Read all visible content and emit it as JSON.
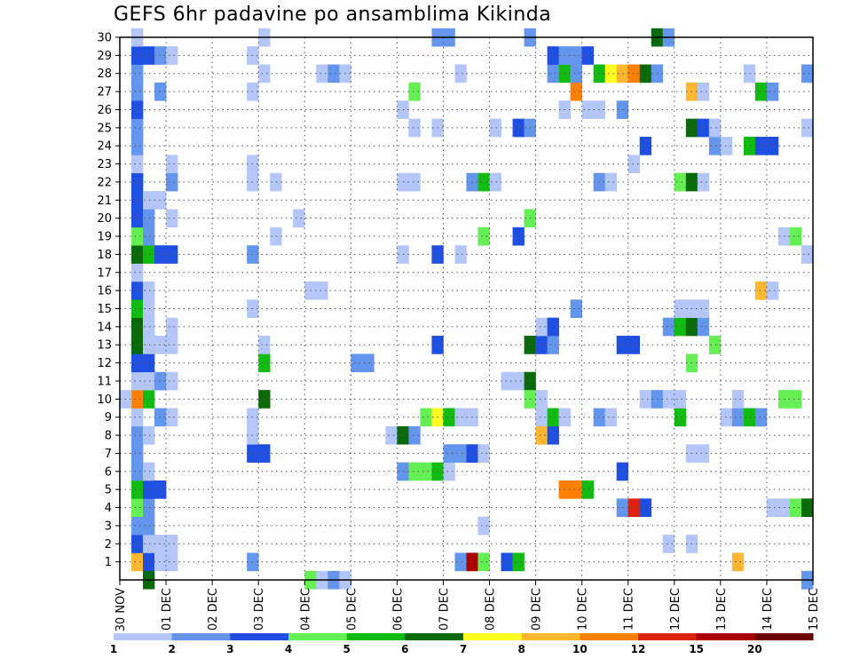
{
  "chart_data": {
    "type": "heatmap",
    "title": "GEFS 6hr padavine po ansamblima Kikinda",
    "y_ticks": [
      1,
      2,
      3,
      4,
      5,
      6,
      7,
      8,
      9,
      10,
      11,
      12,
      13,
      14,
      15,
      16,
      17,
      18,
      19,
      20,
      21,
      22,
      23,
      24,
      25,
      26,
      27,
      28,
      29,
      30
    ],
    "x_ticks": [
      "30 NOV",
      "01 DEC",
      "02 DEC",
      "03 DEC",
      "04 DEC",
      "05 DEC",
      "06 DEC",
      "07 DEC",
      "08 DEC",
      "09 DEC",
      "10 DEC",
      "11 DEC",
      "12 DEC",
      "13 DEC",
      "14 DEC",
      "15 DEC"
    ],
    "x_range": [
      0,
      15
    ],
    "y_range": [
      0,
      30
    ],
    "grid": true,
    "colorbar": {
      "labels": [
        "1",
        "2",
        "3",
        "4",
        "5",
        "6",
        "7",
        "8",
        "10",
        "12",
        "15",
        "20"
      ],
      "colors": [
        "#b3c6f7",
        "#6495ed",
        "#1e4fe0",
        "#66ee55",
        "#11bb11",
        "#0a6a0a",
        "#ffff22",
        "#ffb630",
        "#ff7f00",
        "#dd2211",
        "#aa0000",
        "#6b0000"
      ]
    },
    "cells": [
      {
        "d": 0.25,
        "m": 1,
        "c": 7
      },
      {
        "d": 0.25,
        "m": 2,
        "c": 2
      },
      {
        "d": 0.25,
        "m": 3,
        "c": 1
      },
      {
        "d": 0.25,
        "m": 4,
        "c": 3
      },
      {
        "d": 0.25,
        "m": 5,
        "c": 4
      },
      {
        "d": 0.25,
        "m": 6,
        "c": 1
      },
      {
        "d": 0.25,
        "m": 7,
        "c": 1
      },
      {
        "d": 0.25,
        "m": 8,
        "c": 1
      },
      {
        "d": 0.25,
        "m": 9,
        "c": 0
      },
      {
        "d": 0.25,
        "m": 10,
        "c": 8
      },
      {
        "d": 0.25,
        "m": 11,
        "c": 0
      },
      {
        "d": 0.25,
        "m": 12,
        "c": 2
      },
      {
        "d": 0.25,
        "m": 13,
        "c": 5
      },
      {
        "d": 0.25,
        "m": 14,
        "c": 5
      },
      {
        "d": 0.25,
        "m": 15,
        "c": 4
      },
      {
        "d": 0.25,
        "m": 16,
        "c": 2
      },
      {
        "d": 0.25,
        "m": 17,
        "c": 0
      },
      {
        "d": 0.25,
        "m": 18,
        "c": 5
      },
      {
        "d": 0.25,
        "m": 19,
        "c": 3
      },
      {
        "d": 0.25,
        "m": 20,
        "c": 2
      },
      {
        "d": 0.25,
        "m": 21,
        "c": 2
      },
      {
        "d": 0.25,
        "m": 22,
        "c": 2
      },
      {
        "d": 0.25,
        "m": 23,
        "c": 0
      },
      {
        "d": 0.25,
        "m": 24,
        "c": 1
      },
      {
        "d": 0.25,
        "m": 25,
        "c": 1
      },
      {
        "d": 0.25,
        "m": 26,
        "c": 2
      },
      {
        "d": 0.25,
        "m": 27,
        "c": 1
      },
      {
        "d": 0.25,
        "m": 28,
        "c": 1
      },
      {
        "d": 0.25,
        "m": 29,
        "c": 2
      },
      {
        "d": 0.25,
        "m": 30,
        "c": 0
      },
      {
        "d": 0.5,
        "m": 1,
        "c": 2
      },
      {
        "d": 0.5,
        "m": 2,
        "c": 0
      },
      {
        "d": 0.5,
        "m": 3,
        "c": 1
      },
      {
        "d": 0.5,
        "m": 4,
        "c": 1
      },
      {
        "d": 0.5,
        "m": 5,
        "c": 2
      },
      {
        "d": 0.5,
        "m": 6,
        "c": 0
      },
      {
        "d": 0.5,
        "m": 8,
        "c": 0
      },
      {
        "d": 0.5,
        "m": 10,
        "c": 4
      },
      {
        "d": 0.5,
        "m": 11,
        "c": 0
      },
      {
        "d": 0.5,
        "m": 12,
        "c": 2
      },
      {
        "d": 0.5,
        "m": 13,
        "c": 0
      },
      {
        "d": 0.5,
        "m": 14,
        "c": 0
      },
      {
        "d": 0.5,
        "m": 15,
        "c": 0
      },
      {
        "d": 0.5,
        "m": 16,
        "c": 0
      },
      {
        "d": 0.5,
        "m": 18,
        "c": 4
      },
      {
        "d": 0.5,
        "m": 19,
        "c": 1
      },
      {
        "d": 0.5,
        "m": 20,
        "c": 1
      },
      {
        "d": 0.5,
        "m": 21,
        "c": 0
      },
      {
        "d": 0.5,
        "m": 29,
        "c": 2
      },
      {
        "d": 0.5,
        "m": 0,
        "c": 5
      },
      {
        "d": 0.0,
        "m": 10,
        "c": 0
      },
      {
        "d": 0.75,
        "m": 1,
        "c": 0
      },
      {
        "d": 0.75,
        "m": 2,
        "c": 0
      },
      {
        "d": 0.75,
        "m": 5,
        "c": 2
      },
      {
        "d": 0.75,
        "m": 9,
        "c": 1
      },
      {
        "d": 0.75,
        "m": 11,
        "c": 1
      },
      {
        "d": 0.75,
        "m": 13,
        "c": 0
      },
      {
        "d": 0.75,
        "m": 18,
        "c": 2
      },
      {
        "d": 0.75,
        "m": 21,
        "c": 0
      },
      {
        "d": 0.75,
        "m": 27,
        "c": 1
      },
      {
        "d": 0.75,
        "m": 29,
        "c": 1
      },
      {
        "d": 1.0,
        "m": 1,
        "c": 0
      },
      {
        "d": 1.0,
        "m": 2,
        "c": 0
      },
      {
        "d": 1.0,
        "m": 9,
        "c": 0
      },
      {
        "d": 1.0,
        "m": 11,
        "c": 0
      },
      {
        "d": 1.0,
        "m": 13,
        "c": 0
      },
      {
        "d": 1.0,
        "m": 14,
        "c": 0
      },
      {
        "d": 1.0,
        "m": 18,
        "c": 2
      },
      {
        "d": 1.0,
        "m": 20,
        "c": 0
      },
      {
        "d": 1.0,
        "m": 22,
        "c": 1
      },
      {
        "d": 1.0,
        "m": 23,
        "c": 0
      },
      {
        "d": 1.0,
        "m": 29,
        "c": 0
      },
      {
        "d": 2.75,
        "m": 1,
        "c": 1
      },
      {
        "d": 2.75,
        "m": 7,
        "c": 2
      },
      {
        "d": 2.75,
        "m": 18,
        "c": 1
      },
      {
        "d": 2.75,
        "m": 9,
        "c": 0
      },
      {
        "d": 2.75,
        "m": 8,
        "c": 0
      },
      {
        "d": 2.75,
        "m": 15,
        "c": 0
      },
      {
        "d": 2.75,
        "m": 22,
        "c": 0
      },
      {
        "d": 2.75,
        "m": 23,
        "c": 0
      },
      {
        "d": 2.75,
        "m": 27,
        "c": 0
      },
      {
        "d": 2.75,
        "m": 29,
        "c": 0
      },
      {
        "d": 3.0,
        "m": 7,
        "c": 2
      },
      {
        "d": 3.0,
        "m": 10,
        "c": 5
      },
      {
        "d": 3.0,
        "m": 12,
        "c": 4
      },
      {
        "d": 3.0,
        "m": 13,
        "c": 0
      },
      {
        "d": 3.0,
        "m": 28,
        "c": 0
      },
      {
        "d": 3.0,
        "m": 30,
        "c": 0
      },
      {
        "d": 3.25,
        "m": 19,
        "c": 0
      },
      {
        "d": 3.25,
        "m": 22,
        "c": 0
      },
      {
        "d": 3.75,
        "m": 20,
        "c": 0
      },
      {
        "d": 4.0,
        "m": 0,
        "c": 3
      },
      {
        "d": 4.0,
        "m": 16,
        "c": 0
      },
      {
        "d": 4.25,
        "m": 0,
        "c": 0
      },
      {
        "d": 4.25,
        "m": 16,
        "c": 0
      },
      {
        "d": 4.25,
        "m": 28,
        "c": 0
      },
      {
        "d": 4.5,
        "m": 0,
        "c": 1
      },
      {
        "d": 4.5,
        "m": 28,
        "c": 1
      },
      {
        "d": 4.75,
        "m": 0,
        "c": 0
      },
      {
        "d": 4.75,
        "m": 28,
        "c": 0
      },
      {
        "d": 5.0,
        "m": 12,
        "c": 1
      },
      {
        "d": 5.25,
        "m": 12,
        "c": 1
      },
      {
        "d": 5.75,
        "m": 8,
        "c": 0
      },
      {
        "d": 6.0,
        "m": 8,
        "c": 5
      },
      {
        "d": 6.0,
        "m": 6,
        "c": 1
      },
      {
        "d": 6.0,
        "m": 18,
        "c": 0
      },
      {
        "d": 6.0,
        "m": 22,
        "c": 0
      },
      {
        "d": 6.0,
        "m": 26,
        "c": 0
      },
      {
        "d": 6.25,
        "m": 6,
        "c": 3
      },
      {
        "d": 6.25,
        "m": 8,
        "c": 1
      },
      {
        "d": 6.25,
        "m": 22,
        "c": 0
      },
      {
        "d": 6.25,
        "m": 25,
        "c": 0
      },
      {
        "d": 6.25,
        "m": 27,
        "c": 3
      },
      {
        "d": 6.5,
        "m": 6,
        "c": 3
      },
      {
        "d": 6.5,
        "m": 9,
        "c": 3
      },
      {
        "d": 6.75,
        "m": 6,
        "c": 4
      },
      {
        "d": 6.75,
        "m": 9,
        "c": 6
      },
      {
        "d": 6.75,
        "m": 13,
        "c": 2
      },
      {
        "d": 6.75,
        "m": 18,
        "c": 2
      },
      {
        "d": 6.75,
        "m": 25,
        "c": 0
      },
      {
        "d": 6.75,
        "m": 30,
        "c": 1
      },
      {
        "d": 7.0,
        "m": 6,
        "c": 0
      },
      {
        "d": 7.0,
        "m": 7,
        "c": 1
      },
      {
        "d": 7.0,
        "m": 9,
        "c": 4
      },
      {
        "d": 7.0,
        "m": 30,
        "c": 1
      },
      {
        "d": 7.25,
        "m": 1,
        "c": 1
      },
      {
        "d": 7.25,
        "m": 7,
        "c": 1
      },
      {
        "d": 7.25,
        "m": 9,
        "c": 0
      },
      {
        "d": 7.25,
        "m": 18,
        "c": 0
      },
      {
        "d": 7.25,
        "m": 28,
        "c": 0
      },
      {
        "d": 7.5,
        "m": 1,
        "c": 10
      },
      {
        "d": 7.5,
        "m": 7,
        "c": 2
      },
      {
        "d": 7.5,
        "m": 9,
        "c": 0
      },
      {
        "d": 7.5,
        "m": 22,
        "c": 1
      },
      {
        "d": 7.75,
        "m": 1,
        "c": 3
      },
      {
        "d": 7.75,
        "m": 3,
        "c": 0
      },
      {
        "d": 7.75,
        "m": 7,
        "c": 0
      },
      {
        "d": 7.75,
        "m": 19,
        "c": 3
      },
      {
        "d": 7.75,
        "m": 22,
        "c": 4
      },
      {
        "d": 8.0,
        "m": 22,
        "c": 0
      },
      {
        "d": 8.0,
        "m": 25,
        "c": 0
      },
      {
        "d": 8.25,
        "m": 1,
        "c": 2
      },
      {
        "d": 8.25,
        "m": 11,
        "c": 0
      },
      {
        "d": 8.5,
        "m": 1,
        "c": 4
      },
      {
        "d": 8.5,
        "m": 11,
        "c": 0
      },
      {
        "d": 8.5,
        "m": 19,
        "c": 2
      },
      {
        "d": 8.5,
        "m": 25,
        "c": 2
      },
      {
        "d": 8.75,
        "m": 11,
        "c": 5
      },
      {
        "d": 8.75,
        "m": 13,
        "c": 5
      },
      {
        "d": 8.75,
        "m": 10,
        "c": 3
      },
      {
        "d": 8.75,
        "m": 20,
        "c": 3
      },
      {
        "d": 8.75,
        "m": 30,
        "c": 1
      },
      {
        "d": 8.75,
        "m": 25,
        "c": 1
      },
      {
        "d": 9.0,
        "m": 8,
        "c": 7
      },
      {
        "d": 9.0,
        "m": 9,
        "c": 0
      },
      {
        "d": 9.0,
        "m": 10,
        "c": 0
      },
      {
        "d": 9.0,
        "m": 13,
        "c": 2
      },
      {
        "d": 9.0,
        "m": 14,
        "c": 0
      },
      {
        "d": 9.25,
        "m": 8,
        "c": 2
      },
      {
        "d": 9.25,
        "m": 9,
        "c": 4
      },
      {
        "d": 9.25,
        "m": 13,
        "c": 1
      },
      {
        "d": 9.25,
        "m": 14,
        "c": 2
      },
      {
        "d": 9.25,
        "m": 28,
        "c": 1
      },
      {
        "d": 9.25,
        "m": 29,
        "c": 2
      },
      {
        "d": 9.5,
        "m": 9,
        "c": 0
      },
      {
        "d": 9.5,
        "m": 5,
        "c": 8
      },
      {
        "d": 9.5,
        "m": 28,
        "c": 4
      },
      {
        "d": 9.5,
        "m": 29,
        "c": 1
      },
      {
        "d": 9.5,
        "m": 26,
        "c": 0
      },
      {
        "d": 9.75,
        "m": 5,
        "c": 8
      },
      {
        "d": 9.75,
        "m": 27,
        "c": 8
      },
      {
        "d": 9.75,
        "m": 28,
        "c": 1
      },
      {
        "d": 9.75,
        "m": 29,
        "c": 1
      },
      {
        "d": 9.75,
        "m": 15,
        "c": 1
      },
      {
        "d": 10.0,
        "m": 5,
        "c": 4
      },
      {
        "d": 10.0,
        "m": 26,
        "c": 0
      },
      {
        "d": 10.0,
        "m": 29,
        "c": 2
      },
      {
        "d": 10.25,
        "m": 9,
        "c": 1
      },
      {
        "d": 10.25,
        "m": 22,
        "c": 1
      },
      {
        "d": 10.25,
        "m": 26,
        "c": 0
      },
      {
        "d": 10.25,
        "m": 28,
        "c": 4
      },
      {
        "d": 10.5,
        "m": 9,
        "c": 0
      },
      {
        "d": 10.5,
        "m": 22,
        "c": 0
      },
      {
        "d": 10.5,
        "m": 28,
        "c": 6
      },
      {
        "d": 10.75,
        "m": 4,
        "c": 1
      },
      {
        "d": 10.75,
        "m": 6,
        "c": 2
      },
      {
        "d": 10.75,
        "m": 13,
        "c": 2
      },
      {
        "d": 10.75,
        "m": 26,
        "c": 1
      },
      {
        "d": 10.75,
        "m": 28,
        "c": 7
      },
      {
        "d": 11.0,
        "m": 4,
        "c": 9
      },
      {
        "d": 11.0,
        "m": 13,
        "c": 2
      },
      {
        "d": 11.0,
        "m": 23,
        "c": 0
      },
      {
        "d": 11.0,
        "m": 28,
        "c": 8
      },
      {
        "d": 11.25,
        "m": 4,
        "c": 2
      },
      {
        "d": 11.25,
        "m": 10,
        "c": 0
      },
      {
        "d": 11.25,
        "m": 24,
        "c": 2
      },
      {
        "d": 11.25,
        "m": 28,
        "c": 5
      },
      {
        "d": 11.5,
        "m": 10,
        "c": 1
      },
      {
        "d": 11.5,
        "m": 28,
        "c": 1
      },
      {
        "d": 11.5,
        "m": 30,
        "c": 5
      },
      {
        "d": 11.75,
        "m": 2,
        "c": 0
      },
      {
        "d": 11.75,
        "m": 10,
        "c": 0
      },
      {
        "d": 11.75,
        "m": 14,
        "c": 1
      },
      {
        "d": 11.75,
        "m": 30,
        "c": 1
      },
      {
        "d": 12.0,
        "m": 9,
        "c": 4
      },
      {
        "d": 12.0,
        "m": 10,
        "c": 0
      },
      {
        "d": 12.0,
        "m": 14,
        "c": 4
      },
      {
        "d": 12.0,
        "m": 15,
        "c": 0
      },
      {
        "d": 12.0,
        "m": 22,
        "c": 3
      },
      {
        "d": 12.25,
        "m": 2,
        "c": 0
      },
      {
        "d": 12.25,
        "m": 7,
        "c": 0
      },
      {
        "d": 12.25,
        "m": 12,
        "c": 3
      },
      {
        "d": 12.25,
        "m": 14,
        "c": 5
      },
      {
        "d": 12.25,
        "m": 15,
        "c": 0
      },
      {
        "d": 12.25,
        "m": 22,
        "c": 5
      },
      {
        "d": 12.25,
        "m": 25,
        "c": 5
      },
      {
        "d": 12.25,
        "m": 27,
        "c": 7
      },
      {
        "d": 12.5,
        "m": 7,
        "c": 0
      },
      {
        "d": 12.5,
        "m": 14,
        "c": 1
      },
      {
        "d": 12.5,
        "m": 15,
        "c": 0
      },
      {
        "d": 12.5,
        "m": 22,
        "c": 0
      },
      {
        "d": 12.5,
        "m": 25,
        "c": 2
      },
      {
        "d": 12.5,
        "m": 27,
        "c": 0
      },
      {
        "d": 12.75,
        "m": 13,
        "c": 3
      },
      {
        "d": 12.75,
        "m": 24,
        "c": 1
      },
      {
        "d": 12.75,
        "m": 25,
        "c": 0
      },
      {
        "d": 13.0,
        "m": 9,
        "c": 0
      },
      {
        "d": 13.0,
        "m": 24,
        "c": 0
      },
      {
        "d": 13.25,
        "m": 1,
        "c": 7
      },
      {
        "d": 13.25,
        "m": 9,
        "c": 1
      },
      {
        "d": 13.25,
        "m": 10,
        "c": 0
      },
      {
        "d": 13.5,
        "m": 9,
        "c": 4
      },
      {
        "d": 13.5,
        "m": 24,
        "c": 4
      },
      {
        "d": 13.5,
        "m": 28,
        "c": 0
      },
      {
        "d": 13.75,
        "m": 9,
        "c": 1
      },
      {
        "d": 13.75,
        "m": 16,
        "c": 7
      },
      {
        "d": 13.75,
        "m": 24,
        "c": 2
      },
      {
        "d": 13.75,
        "m": 27,
        "c": 4
      },
      {
        "d": 14.0,
        "m": 4,
        "c": 0
      },
      {
        "d": 14.0,
        "m": 16,
        "c": 0
      },
      {
        "d": 14.0,
        "m": 24,
        "c": 2
      },
      {
        "d": 14.0,
        "m": 27,
        "c": 1
      },
      {
        "d": 14.25,
        "m": 4,
        "c": 0
      },
      {
        "d": 14.25,
        "m": 10,
        "c": 3
      },
      {
        "d": 14.25,
        "m": 19,
        "c": 0
      },
      {
        "d": 14.5,
        "m": 4,
        "c": 3
      },
      {
        "d": 14.5,
        "m": 10,
        "c": 3
      },
      {
        "d": 14.5,
        "m": 19,
        "c": 3
      },
      {
        "d": 14.75,
        "m": 4,
        "c": 5
      },
      {
        "d": 14.75,
        "m": 0,
        "c": 1
      },
      {
        "d": 14.75,
        "m": 18,
        "c": 0
      },
      {
        "d": 14.75,
        "m": 25,
        "c": 0
      },
      {
        "d": 14.75,
        "m": 28,
        "c": 1
      }
    ]
  }
}
